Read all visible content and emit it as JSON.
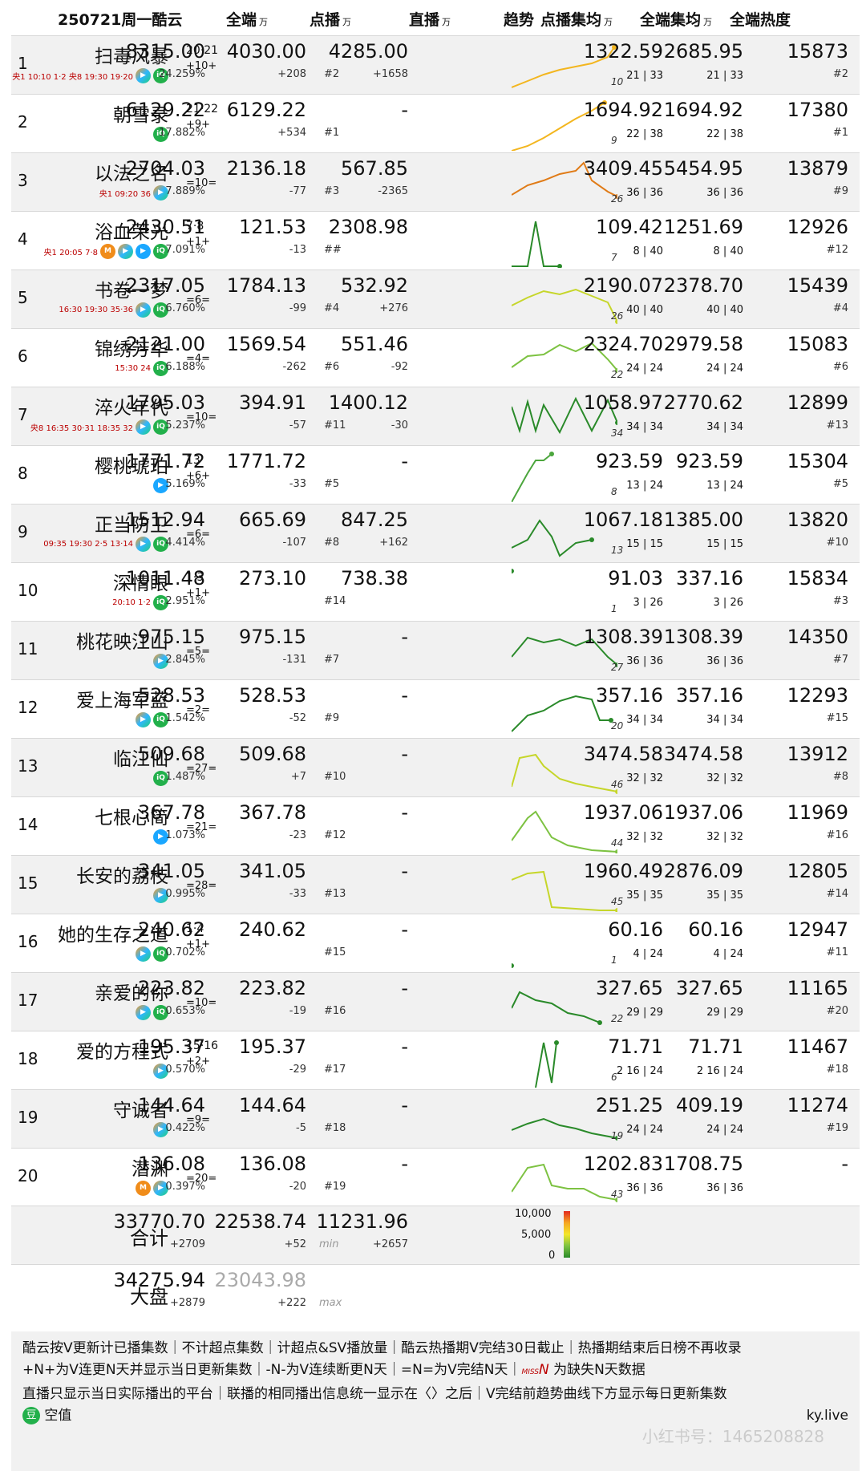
{
  "header": {
    "date": "250721周一酷云",
    "c1": "全端",
    "c2": "点播",
    "c3": "直播",
    "c4": "趋势",
    "c5": "点播集均",
    "c6": "全端集均",
    "c7": "全端热度",
    "unit": "万"
  },
  "rows": [
    {
      "rank": "1",
      "title": "扫毒风暴",
      "eps": "20·21",
      "chg": "+10+",
      "total": "8315.00",
      "share": "24.259%",
      "vod": "4030.00",
      "vod_rank": "#2",
      "vod_chg": "+208",
      "live": "4285.00",
      "live_chg": "+1658",
      "trend_n": "10",
      "avg_vod": "1322.59",
      "avg_all": "2685.95",
      "ep_a": "21 | 33",
      "ep_b": "21 | 33",
      "heat": "15873",
      "heat_rank": "#2",
      "plat": "央1 10:10 1·2 央8 19:30 19·20"
    },
    {
      "rank": "2",
      "title": "朝雪录",
      "eps": "21·22",
      "chg": "+9+",
      "total": "6129.22",
      "share": "17.882%",
      "vod": "6129.22",
      "vod_rank": "#1",
      "vod_chg": "+534",
      "live": "-",
      "live_chg": "",
      "trend_n": "9",
      "avg_vod": "1694.92",
      "avg_all": "1694.92",
      "ep_a": "22 | 38",
      "ep_b": "22 | 38",
      "heat": "17380",
      "heat_rank": "#1",
      "plat": ""
    },
    {
      "rank": "3",
      "title": "以法之名",
      "eps": "",
      "chg": "=10=",
      "total": "2704.03",
      "share": "7.889%",
      "vod": "2136.18",
      "vod_rank": "#3",
      "vod_chg": "-77",
      "live": "567.85",
      "live_chg": "-2365",
      "trend_n": "26",
      "avg_vod": "3409.45",
      "avg_all": "5454.95",
      "ep_a": "36 | 36",
      "ep_b": "36 | 36",
      "heat": "13879",
      "heat_rank": "#9",
      "plat": "央1 09:20 36"
    },
    {
      "rank": "4",
      "title": "浴血荣光",
      "eps": "7·8",
      "chg": "+1+",
      "total": "2430.51",
      "share": "7.091%",
      "vod": "121.53",
      "vod_rank": "##",
      "vod_chg": "-13",
      "live": "2308.98",
      "live_chg": "",
      "trend_n": "7",
      "avg_vod": "109.42",
      "avg_all": "1251.69",
      "ep_a": "8 | 40",
      "ep_b": "8 | 40",
      "heat": "12926",
      "heat_rank": "#12",
      "plat": "央1 20:05 7·8"
    },
    {
      "rank": "5",
      "title": "书卷一梦",
      "eps": "",
      "chg": "=6=",
      "total": "2317.05",
      "share": "6.760%",
      "vod": "1784.13",
      "vod_rank": "#4",
      "vod_chg": "-99",
      "live": "532.92",
      "live_chg": "+276",
      "trend_n": "26",
      "avg_vod": "2190.07",
      "avg_all": "2378.70",
      "ep_a": "40 | 40",
      "ep_b": "40 | 40",
      "heat": "15439",
      "heat_rank": "#4",
      "plat": "16:30 19:30 35·36"
    },
    {
      "rank": "6",
      "title": "锦绣芳华",
      "eps": "",
      "chg": "=4=",
      "total": "2121.00",
      "share": "6.188%",
      "vod": "1569.54",
      "vod_rank": "#6",
      "vod_chg": "-262",
      "live": "551.46",
      "live_chg": "-92",
      "trend_n": "22",
      "avg_vod": "2324.70",
      "avg_all": "2979.58",
      "ep_a": "24 | 24",
      "ep_b": "24 | 24",
      "heat": "15083",
      "heat_rank": "#6",
      "plat": "15:30 24"
    },
    {
      "rank": "7",
      "title": "淬火年代",
      "eps": "",
      "chg": "=10=",
      "total": "1795.03",
      "share": "5.237%",
      "vod": "394.91",
      "vod_rank": "#11",
      "vod_chg": "-57",
      "live": "1400.12",
      "live_chg": "-30",
      "trend_n": "34",
      "avg_vod": "1058.97",
      "avg_all": "2770.62",
      "ep_a": "34 | 34",
      "ep_b": "34 | 34",
      "heat": "12899",
      "heat_rank": "#13",
      "plat": "央8 16:35 30·31 18:35 32"
    },
    {
      "rank": "8",
      "title": "樱桃琥珀",
      "eps": "13",
      "chg": "+6+",
      "total": "1771.72",
      "share": "5.169%",
      "vod": "1771.72",
      "vod_rank": "#5",
      "vod_chg": "-33",
      "live": "-",
      "live_chg": "",
      "trend_n": "8",
      "avg_vod": "923.59",
      "avg_all": "923.59",
      "ep_a": "13 | 24",
      "ep_b": "13 | 24",
      "heat": "15304",
      "heat_rank": "#5",
      "plat": ""
    },
    {
      "rank": "9",
      "title": "正当防卫",
      "eps": "",
      "chg": "=6=",
      "total": "1512.94",
      "share": "4.414%",
      "vod": "665.69",
      "vod_rank": "#8",
      "vod_chg": "-107",
      "live": "847.25",
      "live_chg": "+162",
      "trend_n": "13",
      "avg_vod": "1067.18",
      "avg_all": "1385.00",
      "ep_a": "15 | 15",
      "ep_b": "15 | 15",
      "heat": "13820",
      "heat_rank": "#10",
      "plat": "09:35 19:30 2·5 13·14"
    },
    {
      "rank": "10",
      "title": "深情眼",
      "eps": "1·3",
      "chg": "+1+",
      "total": "1011.48",
      "share": "2.951%",
      "vod": "273.10",
      "vod_rank": "#14",
      "vod_chg": "",
      "live": "738.38",
      "live_chg": "",
      "trend_n": "1",
      "avg_vod": "91.03",
      "avg_all": "337.16",
      "ep_a": "3 | 26",
      "ep_b": "3 | 26",
      "heat": "15834",
      "heat_rank": "#3",
      "plat": "20:10 1·2"
    },
    {
      "rank": "11",
      "title": "桃花映江山",
      "eps": "",
      "chg": "=5=",
      "total": "975.15",
      "share": "2.845%",
      "vod": "975.15",
      "vod_rank": "#7",
      "vod_chg": "-131",
      "live": "-",
      "live_chg": "",
      "trend_n": "27",
      "avg_vod": "1308.39",
      "avg_all": "1308.39",
      "ep_a": "36 | 36",
      "ep_b": "36 | 36",
      "heat": "14350",
      "heat_rank": "#7",
      "plat": ""
    },
    {
      "rank": "12",
      "title": "爱上海军蓝",
      "eps": "",
      "chg": "=2=",
      "total": "528.53",
      "share": "1.542%",
      "vod": "528.53",
      "vod_rank": "#9",
      "vod_chg": "-52",
      "live": "-",
      "live_chg": "",
      "trend_n": "20",
      "avg_vod": "357.16",
      "avg_all": "357.16",
      "ep_a": "34 | 34",
      "ep_b": "34 | 34",
      "heat": "12293",
      "heat_rank": "#15",
      "plat": ""
    },
    {
      "rank": "13",
      "title": "临江仙",
      "eps": "",
      "chg": "=27=",
      "total": "509.68",
      "share": "1.487%",
      "vod": "509.68",
      "vod_rank": "#10",
      "vod_chg": "+7",
      "live": "-",
      "live_chg": "",
      "trend_n": "46",
      "avg_vod": "3474.58",
      "avg_all": "3474.58",
      "ep_a": "32 | 32",
      "ep_b": "32 | 32",
      "heat": "13912",
      "heat_rank": "#8",
      "plat": ""
    },
    {
      "rank": "14",
      "title": "七根心简",
      "eps": "",
      "chg": "=21=",
      "total": "367.78",
      "share": "1.073%",
      "vod": "367.78",
      "vod_rank": "#12",
      "vod_chg": "-23",
      "live": "-",
      "live_chg": "",
      "trend_n": "44",
      "avg_vod": "1937.06",
      "avg_all": "1937.06",
      "ep_a": "32 | 32",
      "ep_b": "32 | 32",
      "heat": "11969",
      "heat_rank": "#16",
      "plat": ""
    },
    {
      "rank": "15",
      "title": "长安的荔枝",
      "eps": "",
      "chg": "=28=",
      "total": "341.05",
      "share": "0.995%",
      "vod": "341.05",
      "vod_rank": "#13",
      "vod_chg": "-33",
      "live": "-",
      "live_chg": "",
      "trend_n": "45",
      "avg_vod": "1960.49",
      "avg_all": "2876.09",
      "ep_a": "35 | 35",
      "ep_b": "35 | 35",
      "heat": "12805",
      "heat_rank": "#14",
      "plat": ""
    },
    {
      "rank": "16",
      "title": "她的生存之道",
      "eps": "1·4",
      "chg": "+1+",
      "total": "240.62",
      "share": "0.702%",
      "vod": "240.62",
      "vod_rank": "#15",
      "vod_chg": "",
      "live": "-",
      "live_chg": "",
      "trend_n": "1",
      "avg_vod": "60.16",
      "avg_all": "60.16",
      "ep_a": "4 | 24",
      "ep_b": "4 | 24",
      "heat": "12947",
      "heat_rank": "#11",
      "plat": ""
    },
    {
      "rank": "17",
      "title": "亲爱的你",
      "eps": "",
      "chg": "=10=",
      "total": "223.82",
      "share": "0.653%",
      "vod": "223.82",
      "vod_rank": "#16",
      "vod_chg": "-19",
      "live": "-",
      "live_chg": "",
      "trend_n": "22",
      "avg_vod": "327.65",
      "avg_all": "327.65",
      "ep_a": "29 | 29",
      "ep_b": "29 | 29",
      "heat": "11165",
      "heat_rank": "#20",
      "plat": ""
    },
    {
      "rank": "18",
      "title": "爱的方程式",
      "eps": "15·16",
      "chg": "+2+",
      "total": "195.37",
      "share": "0.570%",
      "vod": "195.37",
      "vod_rank": "#17",
      "vod_chg": "-29",
      "live": "-",
      "live_chg": "",
      "trend_n": "6",
      "avg_vod": "71.71",
      "avg_all": "71.71",
      "ep_a": "2 16 | 24",
      "ep_b": "2 16 | 24",
      "heat": "11467",
      "heat_rank": "#18",
      "plat": ""
    },
    {
      "rank": "19",
      "title": "守诚者",
      "eps": "",
      "chg": "=9=",
      "total": "144.64",
      "share": "0.422%",
      "vod": "144.64",
      "vod_rank": "#18",
      "vod_chg": "-5",
      "live": "-",
      "live_chg": "",
      "trend_n": "19",
      "avg_vod": "251.25",
      "avg_all": "409.19",
      "ep_a": "24 | 24",
      "ep_b": "24 | 24",
      "heat": "11274",
      "heat_rank": "#19",
      "plat": ""
    },
    {
      "rank": "20",
      "title": "潜渊",
      "eps": "",
      "chg": "=20=",
      "total": "136.08",
      "share": "0.397%",
      "vod": "136.08",
      "vod_rank": "#19",
      "vod_chg": "-20",
      "live": "-",
      "live_chg": "",
      "trend_n": "43",
      "avg_vod": "1202.83",
      "avg_all": "1708.75",
      "ep_a": "36 | 36",
      "ep_b": "36 | 36",
      "heat": "-",
      "heat_rank": "",
      "plat": ""
    }
  ],
  "summary": {
    "total_label": "合计",
    "total": "33770.70",
    "total_chg": "+2709",
    "vod": "22538.74",
    "vod_tag": "min",
    "vod_chg": "+52",
    "live": "11231.96",
    "live_chg": "+2657",
    "scale_hi": "10,000",
    "scale_mid": "5,000",
    "scale_lo": "0",
    "market_label": "大盘",
    "market": "34275.94",
    "market_chg": "+2879",
    "market_vod": "23043.98",
    "market_tag": "max",
    "market_vod_chg": "+222"
  },
  "footer": {
    "l1": "酷云按V更新计已播集数｜不计超点集数｜计超点&SV播放量｜酷云热播期V完结30日截止｜热播期结束后日榜不再收录",
    "l2a": "+N+为V连更N天并显示当日更新集数｜-N-为V连续断更N天｜=N=为V完结N天｜",
    "l2miss": "MISS",
    "l2n": "N",
    "l2b": "为缺失N天数据",
    "l3": "直播只显示当日实际播出的平台｜联播的相同播出信息统一显示在〈〉之后｜V完结前趋势曲线下方显示每日更新集数",
    "brand": "空值",
    "site": "ky.live",
    "watermark": "小红书号：1465208828"
  }
}
